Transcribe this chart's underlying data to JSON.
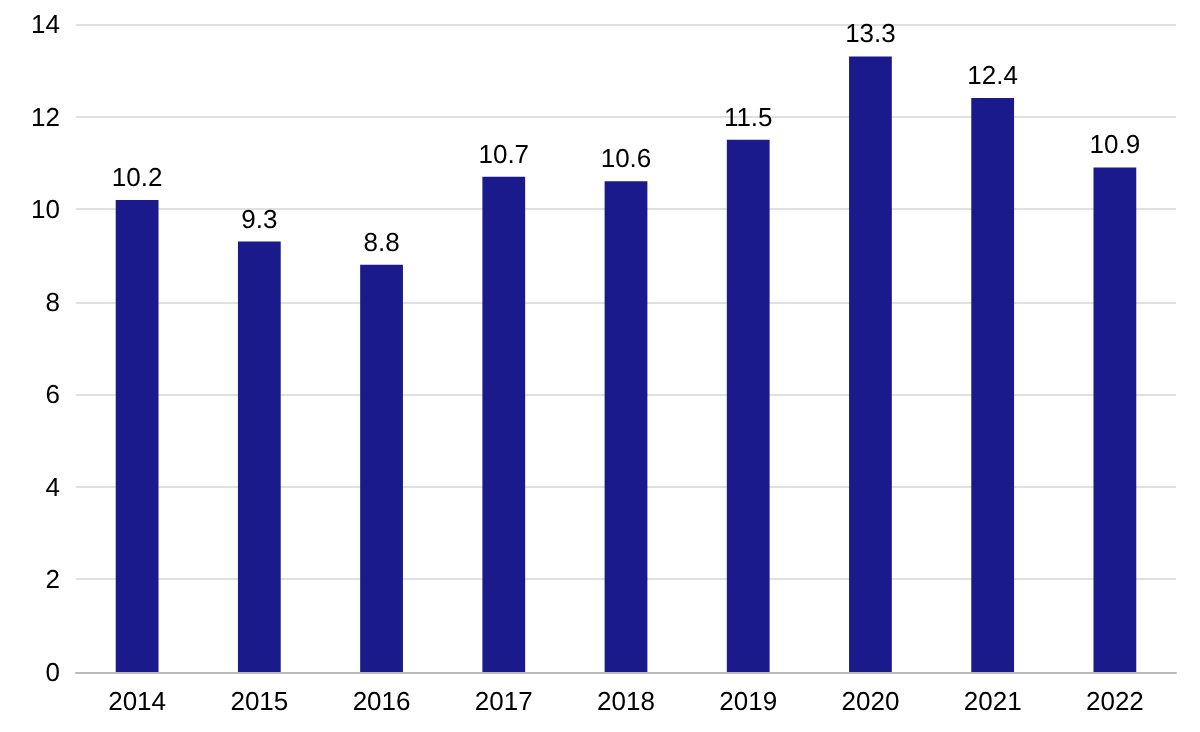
{
  "chart_data": {
    "type": "bar",
    "categories": [
      "2014",
      "2015",
      "2016",
      "2017",
      "2018",
      "2019",
      "2020",
      "2021",
      "2022"
    ],
    "values": [
      10.2,
      9.3,
      8.8,
      10.7,
      10.6,
      11.5,
      13.3,
      12.4,
      10.9
    ],
    "color": "#1a1a8c",
    "ylim": [
      0,
      14
    ],
    "yticks": [
      0,
      2,
      4,
      6,
      8,
      10,
      12,
      14
    ],
    "grid": "y",
    "data_labels": true
  }
}
